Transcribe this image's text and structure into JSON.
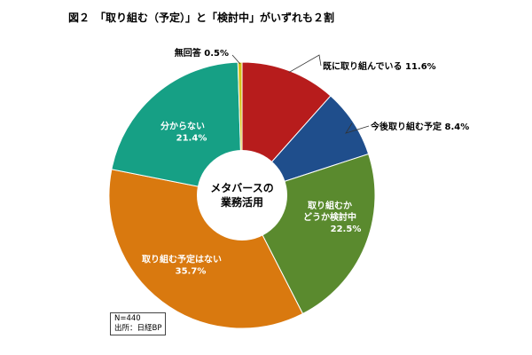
{
  "figure": {
    "title": "図２　「取り組む（予定）」と「検討中」がいずれも２割"
  },
  "chart_data": {
    "type": "pie",
    "center_label": [
      "メタバースの",
      "業務活用"
    ],
    "unit": "%",
    "slices": [
      {
        "label": "既に取り組んでいる",
        "value": 11.6,
        "color": "#b71c1c",
        "label_style": "outside"
      },
      {
        "label": "今後取り組む予定",
        "value": 8.4,
        "color": "#1f4e8c",
        "label_style": "outside"
      },
      {
        "label": "取り組むかどうか検討中",
        "lines": [
          "取り組むか",
          "どうか検討中"
        ],
        "value": 22.5,
        "color": "#5a8a2e",
        "label_style": "inside"
      },
      {
        "label": "取り組む予定はない",
        "value": 35.7,
        "color": "#d9790f",
        "label_style": "inside"
      },
      {
        "label": "分からない",
        "value": 21.4,
        "color": "#16a085",
        "label_style": "inside"
      },
      {
        "label": "無回答",
        "value": 0.5,
        "color": "#d4c11a",
        "label_style": "outside"
      }
    ]
  },
  "note": {
    "n": "N=440",
    "source": "出所：日経BP"
  }
}
